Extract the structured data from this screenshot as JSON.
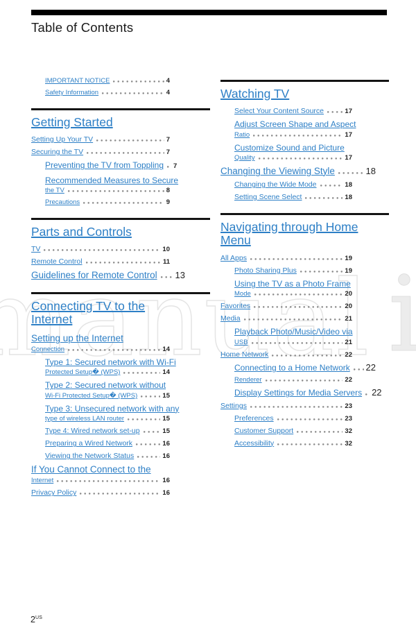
{
  "header": {
    "title": "Table of Contents"
  },
  "footer": {
    "page_number": "2",
    "region": "US"
  },
  "watermark": {
    "outline": "manual",
    "filled": "i"
  },
  "colors": {
    "link_blue": "#2d7fc6",
    "page_number": "#222222",
    "dot_leader": "#8c8c8c",
    "rule": "#141414",
    "top_bar": "#000000"
  },
  "toc": {
    "left": [
      {
        "rule": false,
        "title": null,
        "items": [
          {
            "text": "IMPORTANT NOTICE",
            "page": "4",
            "size": "xs",
            "indent": 1
          },
          {
            "text": "Safety Information",
            "page": "4",
            "size": "xs",
            "indent": 1
          }
        ]
      },
      {
        "rule": true,
        "title": "Getting Started",
        "items": [
          {
            "text": "Setting Up Your TV",
            "page": "7",
            "size": "s",
            "indent": 0
          },
          {
            "text": "Securing the TV",
            "page": "7",
            "size": "s",
            "indent": 0
          },
          {
            "text": "Preventing the TV from Toppling",
            "page": "7",
            "size": "m",
            "indent": 1
          },
          {
            "text": "Recommended Measures to Secure",
            "size": "m",
            "indent": 1
          },
          {
            "text": "the TV",
            "page": "8",
            "size": "xs",
            "indent": 1
          },
          {
            "text": "Precautions",
            "page": "9",
            "size": "xs",
            "indent": 1
          }
        ]
      },
      {
        "rule": true,
        "title": "Parts and Controls",
        "items": [
          {
            "text": "TV",
            "page": "10",
            "size": "s",
            "indent": 0
          },
          {
            "text": "Remote Control",
            "page": "11",
            "size": "s",
            "indent": 0
          },
          {
            "text": "Guidelines for Remote Control",
            "page": "13",
            "size": "l",
            "indent": 0,
            "big": true
          }
        ]
      },
      {
        "rule": true,
        "title": "Connecting TV to the\nInternet",
        "items": [
          {
            "text": "Setting up the Internet",
            "size": "l",
            "indent": 0
          },
          {
            "text": "Connection",
            "page": "14",
            "size": "xs",
            "indent": 0
          },
          {
            "text": "Type 1: Secured network with Wi-Fi",
            "size": "m",
            "indent": 1
          },
          {
            "text": "Protected Setup� (WPS)",
            "page": "14",
            "size": "xs",
            "indent": 1
          },
          {
            "text": "Type 2: Secured network without",
            "size": "m",
            "indent": 1
          },
          {
            "text": "Wi-Fi Protected Setup� (WPS)",
            "page": "15",
            "size": "xs",
            "indent": 1
          },
          {
            "text": "Type 3: Unsecured network with any",
            "size": "m",
            "indent": 1
          },
          {
            "text": "type of wireless LAN router",
            "page": "15",
            "size": "xs",
            "indent": 1
          },
          {
            "text": "Type 4: Wired network set-up",
            "page": "15",
            "size": "s",
            "indent": 1
          },
          {
            "text": "Preparing a Wired Network",
            "page": "16",
            "size": "s",
            "indent": 1
          },
          {
            "text": "Viewing the Network Status",
            "page": "16",
            "size": "s",
            "indent": 1
          },
          {
            "text": "If You Cannot Connect to the",
            "size": "l",
            "indent": 0
          },
          {
            "text": "Internet",
            "page": "16",
            "size": "xs",
            "indent": 0
          },
          {
            "text": "Privacy Policy",
            "page": "16",
            "size": "s",
            "indent": 0
          }
        ]
      }
    ],
    "right": [
      {
        "rule": true,
        "title": "Watching TV",
        "items": [
          {
            "text": "Select Your Content Source",
            "page": "17",
            "size": "s",
            "indent": 1
          },
          {
            "text": "Adjust Screen Shape and Aspect",
            "size": "m",
            "indent": 1
          },
          {
            "text": "Ratio",
            "page": "17",
            "size": "xs",
            "indent": 1
          },
          {
            "text": "Customize Sound and Picture",
            "size": "m",
            "indent": 1
          },
          {
            "text": "Quality",
            "page": "17",
            "size": "xs",
            "indent": 1
          },
          {
            "text": "Changing the Viewing Style",
            "page": "18",
            "size": "l",
            "indent": 0,
            "big": true
          },
          {
            "text": "Changing the Wide Mode",
            "page": "18",
            "size": "s",
            "indent": 1
          },
          {
            "text": "Setting Scene Select",
            "page": "18",
            "size": "s",
            "indent": 1
          }
        ]
      },
      {
        "rule": true,
        "title": "Navigating through Home\nMenu",
        "items": [
          {
            "text": "All Apps",
            "page": "19",
            "size": "s",
            "indent": 0
          },
          {
            "text": "Photo Sharing Plus",
            "page": "19",
            "size": "s",
            "indent": 1
          },
          {
            "text": "Using the TV as a Photo Frame",
            "size": "m",
            "indent": 1
          },
          {
            "text": "Mode",
            "page": "20",
            "size": "xs",
            "indent": 1
          },
          {
            "text": "Favorites",
            "page": "20",
            "size": "s",
            "indent": 0
          },
          {
            "text": "Media",
            "page": "21",
            "size": "s",
            "indent": 0
          },
          {
            "text": "Playback Photo/Music/Video via",
            "size": "m",
            "indent": 1
          },
          {
            "text": "USB",
            "page": "21",
            "size": "xs",
            "indent": 1
          },
          {
            "text": "Home Network",
            "page": "22",
            "size": "s",
            "indent": 0
          },
          {
            "text": "Connecting to a Home Network",
            "page": "22",
            "size": "m",
            "indent": 1,
            "big": true
          },
          {
            "text": "Renderer",
            "page": "22",
            "size": "xs",
            "indent": 1
          },
          {
            "text": "Display Settings for Media Servers",
            "page": "22",
            "size": "m",
            "indent": 1,
            "big": true
          },
          {
            "text": "Settings",
            "page": "23",
            "size": "s",
            "indent": 0
          },
          {
            "text": "Preferences",
            "page": "23",
            "size": "s",
            "indent": 1
          },
          {
            "text": "Customer Support",
            "page": "32",
            "size": "s",
            "indent": 1
          },
          {
            "text": "Accessibility",
            "page": "32",
            "size": "s",
            "indent": 1
          }
        ]
      }
    ]
  }
}
